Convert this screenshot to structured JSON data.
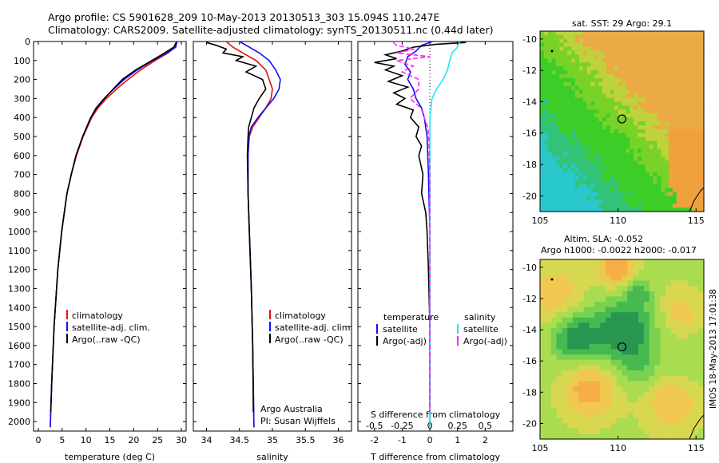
{
  "header": {
    "line1": "Argo profile: CS 5901628_209 10-May-2013 20130513_303 15.094S 110.247E",
    "line2": "Climatology: CARS2009. Satellite-adjusted climatology: synTS_20130511.nc (0.44d later)"
  },
  "side_stamp": "IMOS 18-May-2013 17:01:38",
  "colors": {
    "climatology": "#e01010",
    "satellite": "#1010ee",
    "argo": "#000000",
    "salinity_diff": "#ff22ff",
    "satellite_s": "#20e8f0"
  },
  "chart_data": [
    {
      "type": "line",
      "title": "",
      "xlabel": "temperature (deg C)",
      "ylabel": "",
      "xlim": [
        -1,
        31
      ],
      "ylim": [
        2050,
        0
      ],
      "x_ticks": [
        0,
        5,
        10,
        15,
        20,
        25,
        30
      ],
      "y_ticks": [
        0,
        100,
        200,
        300,
        400,
        500,
        600,
        700,
        800,
        900,
        1000,
        1100,
        1200,
        1300,
        1400,
        1500,
        1600,
        1700,
        1800,
        1900,
        2000
      ],
      "legend": [
        "climatology",
        "satellite-adj. clim.",
        "Argo(..raw -QC)"
      ],
      "series": [
        {
          "name": "climatology",
          "color": "#e01010",
          "depth": [
            0,
            30,
            60,
            100,
            150,
            200,
            250,
            300,
            350,
            400,
            500,
            600,
            700,
            800,
            1000,
            1200,
            1500,
            1800,
            2030
          ],
          "values": [
            29.0,
            28.7,
            27.2,
            24.5,
            21.4,
            18.8,
            16.4,
            14.3,
            12.5,
            11.2,
            9.4,
            8.0,
            6.9,
            6.0,
            4.9,
            4.1,
            3.3,
            2.8,
            2.5
          ]
        },
        {
          "name": "satellite-adj. clim.",
          "color": "#1010ee",
          "depth": [
            0,
            30,
            60,
            100,
            150,
            200,
            250,
            300,
            350,
            400,
            500,
            600,
            700,
            800,
            1000,
            1200,
            1500,
            1800,
            2030
          ],
          "values": [
            29.1,
            28.8,
            27.0,
            24.0,
            20.7,
            18.0,
            15.8,
            13.8,
            12.1,
            11.0,
            9.3,
            7.9,
            6.9,
            6.0,
            4.9,
            4.1,
            3.3,
            2.8,
            2.5
          ]
        },
        {
          "name": "Argo(..raw -QC)",
          "color": "#000000",
          "depth": [
            5,
            30,
            60,
            100,
            150,
            200,
            250,
            300,
            350,
            400,
            500,
            600,
            700,
            800,
            1000,
            1200,
            1500,
            1800,
            1950
          ],
          "values": [
            28.9,
            28.4,
            26.5,
            23.8,
            20.4,
            17.6,
            15.7,
            13.9,
            12.2,
            11.0,
            9.3,
            7.9,
            6.9,
            6.0,
            4.9,
            4.1,
            3.3,
            2.8,
            2.6
          ]
        }
      ]
    },
    {
      "type": "line",
      "title": "",
      "xlabel": "salinity",
      "ylabel": "",
      "xlim": [
        33.8,
        36.2
      ],
      "ylim": [
        2050,
        0
      ],
      "x_ticks": [
        34,
        34.5,
        35,
        35.5,
        36
      ],
      "legend": [
        "climatology",
        "satellite-adj. clim.",
        "Argo(..raw -QC)"
      ],
      "annotations": [
        "Argo Australia",
        "PI: Susan Wijffels"
      ],
      "series": [
        {
          "name": "climatology",
          "color": "#e01010",
          "depth": [
            0,
            30,
            60,
            100,
            150,
            200,
            250,
            300,
            350,
            400,
            450,
            500,
            600,
            800,
            1000,
            1300,
            1600,
            2030
          ],
          "values": [
            34.3,
            34.4,
            34.55,
            34.75,
            34.9,
            34.95,
            35.0,
            34.98,
            34.9,
            34.8,
            34.7,
            34.65,
            34.63,
            34.63,
            34.65,
            34.68,
            34.7,
            34.72
          ]
        },
        {
          "name": "satellite-adj. clim.",
          "color": "#1010ee",
          "depth": [
            0,
            30,
            60,
            100,
            150,
            200,
            250,
            300,
            350,
            400,
            450,
            500,
            600,
            800,
            1000,
            1300,
            1600,
            2030
          ],
          "values": [
            34.5,
            34.65,
            34.8,
            34.95,
            35.05,
            35.12,
            35.1,
            35.02,
            34.9,
            34.78,
            34.68,
            34.64,
            34.63,
            34.63,
            34.65,
            34.68,
            34.7,
            34.72
          ]
        },
        {
          "name": "Argo(..raw -QC)",
          "color": "#000000",
          "depth": [
            5,
            20,
            40,
            60,
            80,
            100,
            130,
            160,
            200,
            250,
            300,
            350,
            400,
            450,
            500,
            600,
            800,
            1000,
            1300,
            1600,
            1950
          ],
          "values": [
            34.0,
            34.15,
            34.3,
            34.25,
            34.55,
            34.45,
            34.75,
            34.6,
            34.85,
            34.9,
            34.8,
            34.72,
            34.68,
            34.64,
            34.63,
            34.62,
            34.63,
            34.65,
            34.68,
            34.7,
            34.71
          ]
        }
      ]
    },
    {
      "type": "line",
      "title": "",
      "xlabel": "T difference from climatology",
      "xlabel_top": "S difference from climatology",
      "xlim": [
        -2.6,
        3.0
      ],
      "ylim": [
        2050,
        0
      ],
      "x_ticks": [
        -2,
        -1,
        0,
        1,
        2
      ],
      "x_ticks_s": [
        -0.5,
        -0.25,
        0,
        0.25,
        0.5
      ],
      "x_ticks_s_labels": [
        "-0.5",
        "-0.25",
        "0",
        "0.25",
        "0.5"
      ],
      "legend_headers": [
        "temperature",
        "salinity"
      ],
      "legend": [
        "satellite",
        "Argo(-adj)",
        "satellite",
        "Argo(-adj)"
      ],
      "series": [
        {
          "name": "satellite",
          "color": "#1010ee",
          "depth": [
            0,
            20,
            50,
            80,
            120,
            160,
            200,
            250,
            300,
            350,
            400,
            500,
            700,
            1000,
            1500,
            2030
          ],
          "values": [
            0.1,
            -0.3,
            -0.5,
            -0.8,
            -0.9,
            -0.7,
            -0.8,
            -0.6,
            -0.5,
            -0.3,
            -0.2,
            -0.1,
            -0.05,
            0,
            0,
            0
          ]
        },
        {
          "name": "Argo(-adj)",
          "color": "#000000",
          "depth": [
            5,
            15,
            30,
            50,
            70,
            90,
            110,
            130,
            150,
            180,
            210,
            240,
            270,
            300,
            330,
            360,
            400,
            450,
            500,
            550,
            600,
            700,
            800,
            900,
            1000,
            1200,
            1500,
            1800,
            1950
          ],
          "values": [
            1.3,
            0.2,
            -0.6,
            -1.0,
            -1.6,
            -1.2,
            -2.0,
            -1.3,
            -1.6,
            -1.0,
            -1.5,
            -0.8,
            -1.3,
            -0.9,
            -1.2,
            -0.6,
            -0.7,
            -0.4,
            -0.5,
            -0.3,
            -0.4,
            -0.25,
            -0.3,
            -0.15,
            -0.1,
            -0.05,
            0.0,
            0.0,
            0.0
          ]
        },
        {
          "name": "satellite (S)",
          "color": "#20e8f0",
          "depth": [
            0,
            30,
            60,
            100,
            150,
            200,
            250,
            300,
            350,
            400,
            500,
            700,
            1000,
            1500,
            2030
          ],
          "values": [
            0.27,
            0.25,
            0.2,
            0.18,
            0.16,
            0.12,
            0.06,
            0.02,
            0.01,
            0.0,
            0.0,
            0.0,
            0.0,
            0.0,
            0.0
          ]
        },
        {
          "name": "Argo(-adj) (S)",
          "color": "#ff22ff",
          "depth": [
            5,
            20,
            40,
            60,
            80,
            100,
            130,
            160,
            200,
            250,
            300,
            350,
            400,
            450,
            500,
            700,
            1000,
            1500,
            1950
          ],
          "values": [
            -0.33,
            -0.3,
            -0.14,
            -0.3,
            0.0,
            -0.3,
            -0.15,
            -0.25,
            -0.1,
            -0.1,
            -0.18,
            -0.08,
            -0.05,
            -0.02,
            -0.01,
            0.0,
            0.0,
            0.0,
            0.0
          ]
        }
      ]
    },
    {
      "type": "heatmap",
      "title": "sat. SST: 29 Argo: 29.1",
      "title2": "",
      "xlim": [
        105,
        115.5
      ],
      "ylim": [
        -21,
        -9.5
      ],
      "x_ticks": [
        105,
        110,
        115
      ],
      "y_ticks": [
        -10,
        -12,
        -14,
        -16,
        -18,
        -20
      ],
      "marker": {
        "lon": 110.25,
        "lat": -15.1
      }
    },
    {
      "type": "heatmap",
      "title": "Altim. SLA: -0.052",
      "title2": "Argo h1000: -0.0022 h2000: -0.017",
      "xlim": [
        105,
        115.5
      ],
      "ylim": [
        -21,
        -9.5
      ],
      "x_ticks": [
        105,
        110,
        115
      ],
      "y_ticks": [
        -10,
        -12,
        -14,
        -16,
        -18,
        -20
      ],
      "marker": {
        "lon": 110.25,
        "lat": -15.1
      }
    }
  ]
}
